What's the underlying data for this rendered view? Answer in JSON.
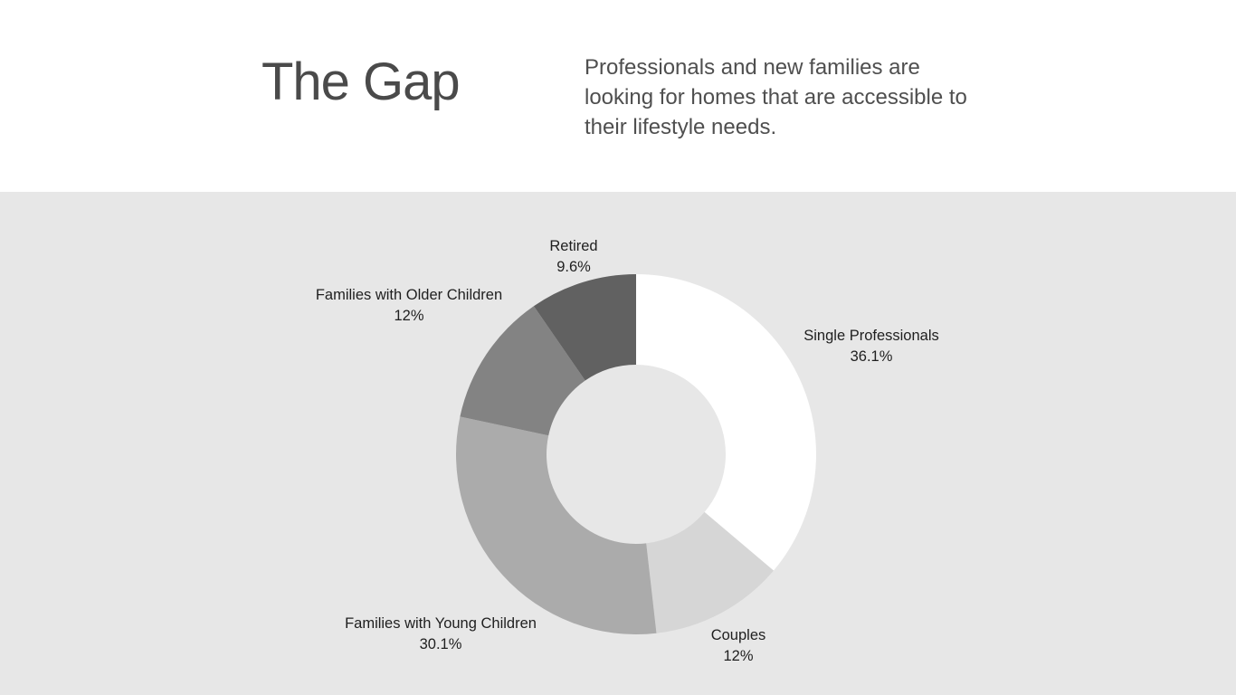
{
  "header": {
    "title": "The Gap",
    "description": "Professionals and new families are looking for homes that are accessible to their lifestyle needs."
  },
  "chart_data": {
    "type": "pie",
    "donut": true,
    "start_angle_deg": 0,
    "direction": "clockwise",
    "slices": [
      {
        "label": "Single Professionals",
        "value": 36.1,
        "value_label": "36.1%",
        "color": "#ffffff"
      },
      {
        "label": "Couples",
        "value": 12,
        "value_label": "12%",
        "color": "#d6d6d6"
      },
      {
        "label": "Families with Young Children",
        "value": 30.1,
        "value_label": "30.1%",
        "color": "#ababab"
      },
      {
        "label": "Families with Older Children",
        "value": 12,
        "value_label": "12%",
        "color": "#838383"
      },
      {
        "label": "Retired",
        "value": 9.6,
        "value_label": "9.6%",
        "color": "#616161"
      }
    ]
  },
  "colors": {
    "chart_background": "#e7e7e7",
    "header_background": "#ffffff",
    "title_color": "#4a4a4a"
  }
}
